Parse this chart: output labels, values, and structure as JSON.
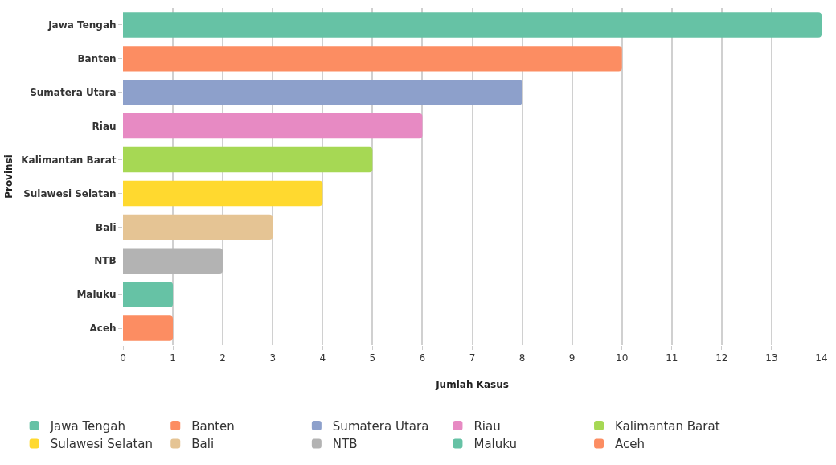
{
  "chart_data": {
    "type": "bar",
    "orientation": "horizontal",
    "xlabel": "Jumlah Kasus",
    "ylabel": "Provinsi",
    "categories": [
      "Jawa Tengah",
      "Banten",
      "Sumatera Utara",
      "Riau",
      "Kalimantan Barat",
      "Sulawesi Selatan",
      "Bali",
      "NTB",
      "Maluku",
      "Aceh"
    ],
    "series": [
      {
        "name": "Jawa Tengah",
        "color": "#66c2a5",
        "values": [
          14,
          null,
          null,
          null,
          null,
          null,
          null,
          null,
          null,
          null
        ]
      },
      {
        "name": "Banten",
        "color": "#fc8d62",
        "values": [
          null,
          10,
          null,
          null,
          null,
          null,
          null,
          null,
          null,
          null
        ]
      },
      {
        "name": "Sumatera Utara",
        "color": "#8da0cb",
        "values": [
          null,
          null,
          8,
          null,
          null,
          null,
          null,
          null,
          null,
          null
        ]
      },
      {
        "name": "Riau",
        "color": "#e78ac3",
        "values": [
          null,
          null,
          null,
          6,
          null,
          null,
          null,
          null,
          null,
          null
        ]
      },
      {
        "name": "Kalimantan Barat",
        "color": "#a6d854",
        "values": [
          null,
          null,
          null,
          null,
          5,
          null,
          null,
          null,
          null,
          null
        ]
      },
      {
        "name": "Sulawesi Selatan",
        "color": "#ffd92f",
        "values": [
          null,
          null,
          null,
          null,
          null,
          4,
          null,
          null,
          null,
          null
        ]
      },
      {
        "name": "Bali",
        "color": "#e5c494",
        "values": [
          null,
          null,
          null,
          null,
          null,
          null,
          3,
          null,
          null,
          null
        ]
      },
      {
        "name": "NTB",
        "color": "#b3b3b3",
        "values": [
          null,
          null,
          null,
          null,
          null,
          null,
          null,
          2,
          null,
          null
        ]
      },
      {
        "name": "Maluku",
        "color": "#66c2a5",
        "values": [
          null,
          null,
          null,
          null,
          null,
          null,
          null,
          null,
          1,
          null
        ]
      },
      {
        "name": "Aceh",
        "color": "#fc8d62",
        "values": [
          null,
          null,
          null,
          null,
          null,
          null,
          null,
          null,
          null,
          1
        ]
      }
    ],
    "xlim": [
      0,
      14
    ],
    "xticks": [
      0,
      1,
      2,
      3,
      4,
      5,
      6,
      7,
      8,
      9,
      10,
      11,
      12,
      13,
      14
    ],
    "grid": "x",
    "legend": "bottom"
  }
}
